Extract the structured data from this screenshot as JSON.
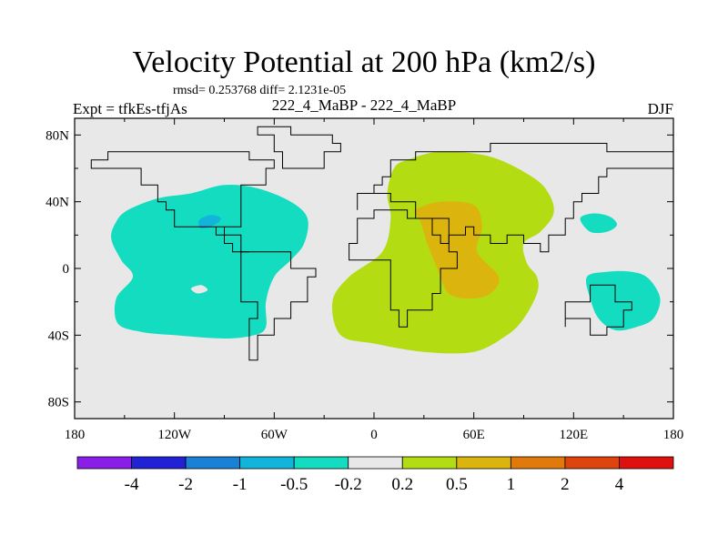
{
  "chart_data": {
    "type": "heatmap",
    "title": "Velocity Potential at 200 hPa (km2/s)",
    "stats_text": "rmsd= 0.253768 diff= 2.1231e-05",
    "experiment_label": "Expt = tfkEs-tfjAs",
    "case_label": "222_4_MaBP - 222_4_MaBP",
    "season_label": "DJF",
    "x_ticks": [
      "180",
      "120W",
      "60W",
      "0",
      "60E",
      "120E",
      "180"
    ],
    "y_ticks": [
      "80N",
      "40N",
      "0",
      "40S",
      "80S"
    ],
    "xlim": [
      -180,
      180
    ],
    "ylim": [
      -90,
      90
    ],
    "colorbar": {
      "labels": [
        "-4",
        "-2",
        "-1",
        "-0.5",
        "-0.2",
        "0.2",
        "0.5",
        "1",
        "2",
        "4"
      ],
      "colors": [
        "#8a1ee8",
        "#2121d6",
        "#1a82d6",
        "#12b4dc",
        "#14dcc0",
        "#e8e8e8",
        "#b4dc12",
        "#dcb40e",
        "#e07a0c",
        "#e0440e",
        "#e0100e"
      ]
    },
    "regions": [
      {
        "name": "western-pacific-low",
        "value_range": "-0.5 to -0.2",
        "color": "#14dcc0",
        "lonlat": [
          [
            -155,
            28
          ],
          [
            -148,
            35
          ],
          [
            -130,
            42
          ],
          [
            -110,
            45
          ],
          [
            -90,
            50
          ],
          [
            -70,
            48
          ],
          [
            -50,
            40
          ],
          [
            -40,
            30
          ],
          [
            -42,
            15
          ],
          [
            -50,
            5
          ],
          [
            -60,
            -5
          ],
          [
            -65,
            -20
          ],
          [
            -65,
            -35
          ],
          [
            -72,
            -40
          ],
          [
            -90,
            -42
          ],
          [
            -120,
            -40
          ],
          [
            -140,
            -38
          ],
          [
            -154,
            -33
          ],
          [
            -155,
            -18
          ],
          [
            -145,
            -5
          ],
          [
            -152,
            5
          ],
          [
            -158,
            18
          ]
        ]
      },
      {
        "name": "inner-negative-core",
        "value_range": "-1 to -0.5",
        "color": "#12b4dc",
        "lonlat": [
          [
            -105,
            29
          ],
          [
            -98,
            32
          ],
          [
            -92,
            30
          ],
          [
            -96,
            26
          ],
          [
            -104,
            24
          ]
        ]
      },
      {
        "name": "equatorial-hole",
        "value_range": "-0.2 to 0.2",
        "color": "#e8e8e8",
        "lonlat": [
          [
            -110,
            -12
          ],
          [
            -104,
            -10
          ],
          [
            -100,
            -13
          ],
          [
            -106,
            -15
          ]
        ]
      },
      {
        "name": "eastern-pacific-patch",
        "value_range": "-0.5 to -0.2",
        "color": "#14dcc0",
        "lonlat": [
          [
            124,
            30
          ],
          [
            132,
            33
          ],
          [
            142,
            31
          ],
          [
            146,
            26
          ],
          [
            140,
            22
          ],
          [
            130,
            22
          ]
        ]
      },
      {
        "name": "southeast-pacific-patch",
        "value_range": "-0.5 to -0.2",
        "color": "#14dcc0",
        "lonlat": [
          [
            128,
            -5
          ],
          [
            140,
            -2
          ],
          [
            155,
            -2
          ],
          [
            165,
            -6
          ],
          [
            172,
            -18
          ],
          [
            168,
            -30
          ],
          [
            158,
            -35
          ],
          [
            145,
            -37
          ],
          [
            135,
            -30
          ],
          [
            130,
            -18
          ]
        ]
      },
      {
        "name": "african-indian-high",
        "value_range": "0.2 to 0.5",
        "color": "#b4dc12",
        "lonlat": [
          [
            20,
            65
          ],
          [
            40,
            70
          ],
          [
            70,
            67
          ],
          [
            95,
            55
          ],
          [
            105,
            45
          ],
          [
            108,
            33
          ],
          [
            100,
            22
          ],
          [
            90,
            15
          ],
          [
            92,
            3
          ],
          [
            98,
            -5
          ],
          [
            98,
            -15
          ],
          [
            90,
            -30
          ],
          [
            80,
            -40
          ],
          [
            60,
            -50
          ],
          [
            30,
            -50
          ],
          [
            0,
            -45
          ],
          [
            -20,
            -40
          ],
          [
            -25,
            -20
          ],
          [
            -15,
            -5
          ],
          [
            5,
            10
          ],
          [
            10,
            30
          ],
          [
            8,
            45
          ],
          [
            12,
            60
          ]
        ]
      },
      {
        "name": "central-core",
        "value_range": "0.5 to 1",
        "color": "#dcb40e",
        "lonlat": [
          [
            25,
            35
          ],
          [
            40,
            40
          ],
          [
            60,
            38
          ],
          [
            65,
            25
          ],
          [
            62,
            10
          ],
          [
            75,
            -5
          ],
          [
            70,
            -15
          ],
          [
            58,
            -18
          ],
          [
            45,
            -15
          ],
          [
            38,
            0
          ],
          [
            32,
            15
          ],
          [
            28,
            28
          ]
        ]
      }
    ],
    "coastlines": [
      {
        "name": "north-america",
        "lonlat": [
          [
            -170,
            65
          ],
          [
            -160,
            72
          ],
          [
            -140,
            70
          ],
          [
            -120,
            72
          ],
          [
            -90,
            72
          ],
          [
            -75,
            65
          ],
          [
            -60,
            60
          ],
          [
            -65,
            48
          ],
          [
            -80,
            35
          ],
          [
            -82,
            25
          ],
          [
            -95,
            20
          ],
          [
            -88,
            15
          ],
          [
            -83,
            10
          ],
          [
            -77,
            8
          ],
          [
            -80,
            20
          ],
          [
            -90,
            25
          ],
          [
            -97,
            27
          ],
          [
            -110,
            25
          ],
          [
            -118,
            33
          ],
          [
            -125,
            40
          ],
          [
            -130,
            50
          ],
          [
            -140,
            60
          ],
          [
            -155,
            58
          ],
          [
            -165,
            60
          ]
        ]
      },
      {
        "name": "south-america",
        "lonlat": [
          [
            -78,
            10
          ],
          [
            -60,
            10
          ],
          [
            -50,
            0
          ],
          [
            -35,
            -7
          ],
          [
            -40,
            -22
          ],
          [
            -50,
            -30
          ],
          [
            -60,
            -40
          ],
          [
            -68,
            -55
          ],
          [
            -75,
            -50
          ],
          [
            -73,
            -30
          ],
          [
            -70,
            -18
          ],
          [
            -80,
            -5
          ]
        ]
      },
      {
        "name": "africa",
        "lonlat": [
          [
            -17,
            15
          ],
          [
            -10,
            30
          ],
          [
            0,
            35
          ],
          [
            10,
            37
          ],
          [
            20,
            32
          ],
          [
            32,
            31
          ],
          [
            43,
            12
          ],
          [
            51,
            12
          ],
          [
            50,
            0
          ],
          [
            40,
            -15
          ],
          [
            35,
            -25
          ],
          [
            20,
            -35
          ],
          [
            15,
            -25
          ],
          [
            12,
            -10
          ],
          [
            9,
            3
          ],
          [
            0,
            5
          ],
          [
            -10,
            5
          ]
        ]
      },
      {
        "name": "eurasia",
        "lonlat": [
          [
            -10,
            36
          ],
          [
            -9,
            43
          ],
          [
            0,
            48
          ],
          [
            5,
            55
          ],
          [
            10,
            63
          ],
          [
            25,
            70
          ],
          [
            50,
            70
          ],
          [
            70,
            73
          ],
          [
            100,
            77
          ],
          [
            140,
            72
          ],
          [
            180,
            69
          ],
          [
            180,
            62
          ],
          [
            160,
            60
          ],
          [
            140,
            55
          ],
          [
            135,
            45
          ],
          [
            125,
            38
          ],
          [
            120,
            30
          ],
          [
            115,
            22
          ],
          [
            108,
            20
          ],
          [
            105,
            10
          ],
          [
            100,
            13
          ],
          [
            95,
            17
          ],
          [
            90,
            22
          ],
          [
            80,
            15
          ],
          [
            72,
            20
          ],
          [
            60,
            25
          ],
          [
            55,
            22
          ],
          [
            45,
            15
          ],
          [
            40,
            20
          ],
          [
            35,
            30
          ],
          [
            27,
            40
          ],
          [
            15,
            40
          ],
          [
            12,
            44
          ],
          [
            3,
            43
          ]
        ]
      },
      {
        "name": "australia",
        "lonlat": [
          [
            114,
            -22
          ],
          [
            122,
            -18
          ],
          [
            130,
            -12
          ],
          [
            137,
            -12
          ],
          [
            142,
            -10
          ],
          [
            146,
            -18
          ],
          [
            153,
            -27
          ],
          [
            150,
            -37
          ],
          [
            140,
            -38
          ],
          [
            130,
            -32
          ],
          [
            115,
            -34
          ]
        ]
      },
      {
        "name": "greenland",
        "lonlat": [
          [
            -55,
            60
          ],
          [
            -45,
            60
          ],
          [
            -30,
            68
          ],
          [
            -20,
            75
          ],
          [
            -25,
            82
          ],
          [
            -50,
            83
          ],
          [
            -70,
            78
          ],
          [
            -60,
            70
          ]
        ]
      }
    ]
  }
}
